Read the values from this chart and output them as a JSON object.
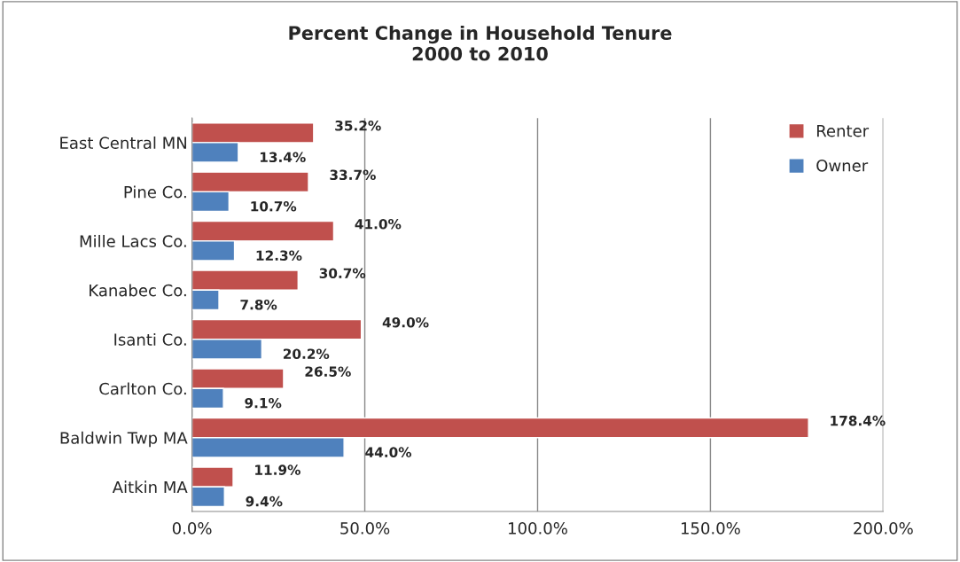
{
  "chart_data": {
    "type": "bar",
    "orientation": "horizontal",
    "title": "Percent Change in Household Tenure\n2000 to 2010",
    "categories": [
      "East Central MN",
      "Pine Co.",
      "Mille Lacs Co.",
      "Kanabec Co.",
      "Isanti Co.",
      "Carlton Co.",
      "Baldwin Twp MA",
      "Aitkin MA"
    ],
    "series": [
      {
        "name": "Renter",
        "color": "#c0504d",
        "values": [
          35.2,
          33.7,
          41.0,
          30.7,
          49.0,
          26.5,
          178.4,
          11.9
        ],
        "value_labels": [
          "35.2%",
          "33.7%",
          "41.0%",
          "30.7%",
          "49.0%",
          "26.5%",
          "178.4%",
          "11.9%"
        ]
      },
      {
        "name": "Owner",
        "color": "#4f81bd",
        "values": [
          13.4,
          10.7,
          12.3,
          7.8,
          20.2,
          9.1,
          44.0,
          9.4
        ],
        "value_labels": [
          "13.4%",
          "10.7%",
          "12.3%",
          "7.8%",
          "20.2%",
          "9.1%",
          "44.0%",
          "9.4%"
        ]
      }
    ],
    "xlim": [
      0,
      200
    ],
    "xticks": [
      {
        "value": 0,
        "label": "0.0%"
      },
      {
        "value": 50,
        "label": "50.0%"
      },
      {
        "value": 100,
        "label": "100.0%"
      },
      {
        "value": 150,
        "label": "150.0%"
      },
      {
        "value": 200,
        "label": "200.0%"
      }
    ],
    "grid": "x",
    "legend": "top right"
  }
}
